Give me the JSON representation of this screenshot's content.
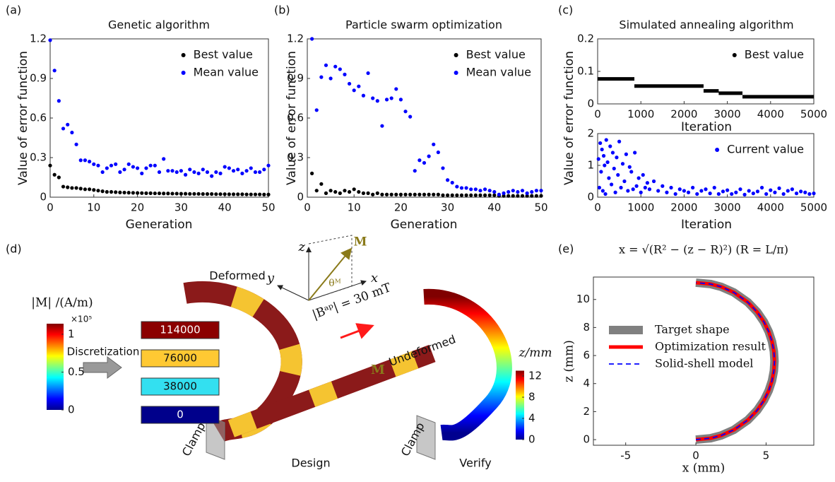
{
  "panel_labels": [
    "(a)",
    "(b)",
    "(c)",
    "(d)",
    "(e)"
  ],
  "chart_data": [
    {
      "type": "scatter",
      "title": "Genetic algorithm",
      "xlabel": "Generation",
      "ylabel": "Value of error function",
      "x": [
        0,
        1,
        2,
        3,
        4,
        5,
        6,
        7,
        8,
        9,
        10,
        11,
        12,
        13,
        14,
        15,
        16,
        17,
        18,
        19,
        20,
        21,
        22,
        23,
        24,
        25,
        26,
        27,
        28,
        29,
        30,
        31,
        32,
        33,
        34,
        35,
        36,
        37,
        38,
        39,
        40,
        41,
        42,
        43,
        44,
        45,
        46,
        47,
        48,
        49,
        50
      ],
      "series": [
        {
          "name": "Best value",
          "color": "#000000",
          "values": [
            0.24,
            0.17,
            0.15,
            0.08,
            0.075,
            0.07,
            0.07,
            0.065,
            0.06,
            0.06,
            0.055,
            0.05,
            0.045,
            0.04,
            0.04,
            0.038,
            0.036,
            0.035,
            0.034,
            0.033,
            0.032,
            0.031,
            0.03,
            0.03,
            0.029,
            0.029,
            0.028,
            0.028,
            0.027,
            0.027,
            0.026,
            0.026,
            0.025,
            0.025,
            0.025,
            0.024,
            0.024,
            0.024,
            0.023,
            0.023,
            0.023,
            0.022,
            0.022,
            0.022,
            0.022,
            0.021,
            0.021,
            0.021,
            0.021,
            0.02,
            0.02
          ]
        },
        {
          "name": "Mean value",
          "color": "#0000ff",
          "values": [
            1.19,
            0.96,
            0.73,
            0.52,
            0.55,
            0.49,
            0.4,
            0.28,
            0.28,
            0.27,
            0.25,
            0.24,
            0.19,
            0.22,
            0.24,
            0.25,
            0.19,
            0.21,
            0.25,
            0.23,
            0.22,
            0.18,
            0.22,
            0.24,
            0.24,
            0.19,
            0.29,
            0.2,
            0.2,
            0.19,
            0.2,
            0.17,
            0.21,
            0.19,
            0.18,
            0.21,
            0.19,
            0.16,
            0.19,
            0.18,
            0.23,
            0.22,
            0.2,
            0.21,
            0.18,
            0.2,
            0.22,
            0.19,
            0.19,
            0.21,
            0.24
          ]
        }
      ],
      "xlim": [
        0,
        50
      ],
      "ylim": [
        0,
        1.2
      ],
      "xticks": [
        0,
        10,
        20,
        30,
        40,
        50
      ],
      "yticks": [
        0,
        0.3,
        0.6,
        0.9,
        1.2
      ],
      "legend": "upper right"
    },
    {
      "type": "scatter",
      "title": "Particle swarm optimization",
      "xlabel": "Generation",
      "ylabel": "Value of error function",
      "x": [
        1,
        2,
        3,
        4,
        5,
        6,
        7,
        8,
        9,
        10,
        11,
        12,
        13,
        14,
        15,
        16,
        17,
        18,
        19,
        20,
        21,
        22,
        23,
        24,
        25,
        26,
        27,
        28,
        29,
        30,
        31,
        32,
        33,
        34,
        35,
        36,
        37,
        38,
        39,
        40,
        41,
        42,
        43,
        44,
        45,
        46,
        47,
        48,
        49,
        50
      ],
      "series": [
        {
          "name": "Best value",
          "color": "#000000",
          "values": [
            0.18,
            0.05,
            0.1,
            0.03,
            0.05,
            0.04,
            0.03,
            0.05,
            0.04,
            0.06,
            0.04,
            0.03,
            0.03,
            0.02,
            0.03,
            0.02,
            0.02,
            0.02,
            0.02,
            0.02,
            0.02,
            0.02,
            0.02,
            0.02,
            0.02,
            0.02,
            0.02,
            0.02,
            0.015,
            0.015,
            0.015,
            0.015,
            0.015,
            0.015,
            0.015,
            0.015,
            0.015,
            0.015,
            0.015,
            0.015,
            0.01,
            0.01,
            0.01,
            0.01,
            0.01,
            0.01,
            0.01,
            0.01,
            0.01,
            0.01
          ]
        },
        {
          "name": "Mean value",
          "color": "#0000ff",
          "values": [
            1.2,
            0.66,
            0.91,
            1.0,
            0.9,
            0.99,
            0.97,
            0.93,
            0.86,
            0.81,
            0.84,
            0.77,
            0.94,
            0.75,
            0.73,
            0.54,
            0.74,
            0.75,
            0.82,
            0.74,
            0.65,
            0.61,
            0.2,
            0.28,
            0.26,
            0.31,
            0.4,
            0.34,
            0.22,
            0.13,
            0.11,
            0.08,
            0.07,
            0.07,
            0.06,
            0.06,
            0.05,
            0.06,
            0.05,
            0.04,
            0.02,
            0.03,
            0.04,
            0.05,
            0.04,
            0.05,
            0.03,
            0.04,
            0.05,
            0.05
          ]
        }
      ],
      "xlim": [
        0,
        50
      ],
      "ylim": [
        0,
        1.2
      ],
      "xticks": [
        0,
        10,
        20,
        30,
        40,
        50
      ],
      "yticks": [
        0,
        0.3,
        0.6,
        0.9,
        1.2
      ],
      "legend": "upper right"
    },
    {
      "type": "line",
      "title": "Simulated annealing algorithm",
      "xlabel": "Iteration",
      "ylabel": "Value of error function",
      "x": [
        0,
        850,
        null,
        850,
        2450,
        null,
        2450,
        2800,
        null,
        2800,
        3350,
        null,
        3350,
        5000
      ],
      "series": [
        {
          "name": "Best value",
          "color": "#000000",
          "marker": "o",
          "values": [
            0.077,
            0.077,
            null,
            0.055,
            0.055,
            null,
            0.04,
            0.04,
            null,
            0.033,
            0.033,
            null,
            0.022,
            0.022
          ]
        }
      ],
      "xlim": [
        0,
        5000
      ],
      "ylim": [
        0,
        0.2
      ],
      "xticks": [
        0,
        1000,
        2000,
        3000,
        4000,
        5000
      ],
      "yticks": [
        0,
        0.1,
        0.2
      ],
      "legend": "upper right"
    },
    {
      "type": "scatter",
      "xlabel": "Iteration",
      "x": [
        20,
        40,
        60,
        80,
        100,
        120,
        140,
        160,
        180,
        200,
        230,
        260,
        290,
        320,
        350,
        380,
        410,
        440,
        470,
        500,
        540,
        580,
        620,
        660,
        700,
        740,
        780,
        820,
        860,
        900,
        950,
        1000,
        1050,
        1100,
        1150,
        1200,
        1300,
        1400,
        1500,
        1600,
        1700,
        1800,
        1900,
        2000,
        2100,
        2200,
        2300,
        2400,
        2500,
        2600,
        2700,
        2800,
        2900,
        3000,
        3100,
        3200,
        3300,
        3400,
        3500,
        3600,
        3700,
        3800,
        3900,
        4000,
        4100,
        4200,
        4300,
        4400,
        4500,
        4600,
        4700,
        4800,
        4900,
        5000
      ],
      "series": [
        {
          "name": "Current value",
          "color": "#0000ff",
          "values": [
            1.2,
            0.3,
            1.7,
            0.8,
            1.5,
            0.2,
            1.3,
            1.0,
            0.1,
            1.8,
            1.1,
            0.6,
            1.6,
            0.4,
            1.4,
            0.9,
            0.15,
            1.25,
            0.7,
            1.75,
            0.3,
            1.05,
            0.5,
            1.35,
            0.2,
            0.95,
            0.8,
            0.25,
            1.4,
            0.35,
            0.6,
            0.15,
            0.7,
            0.3,
            0.45,
            0.25,
            0.5,
            0.2,
            0.35,
            0.15,
            0.3,
            0.1,
            0.25,
            0.2,
            0.15,
            0.3,
            0.1,
            0.2,
            0.25,
            0.12,
            0.3,
            0.1,
            0.18,
            0.22,
            0.1,
            0.15,
            0.25,
            0.08,
            0.2,
            0.12,
            0.18,
            0.3,
            0.1,
            0.22,
            0.15,
            0.28,
            0.1,
            0.2,
            0.25,
            0.12,
            0.18,
            0.15,
            0.1,
            0.12
          ]
        }
      ],
      "xlim": [
        0,
        5000
      ],
      "ylim": [
        0,
        2
      ],
      "xticks": [
        0,
        1000,
        2000,
        3000,
        4000,
        5000
      ],
      "yticks": [
        0,
        1,
        2
      ],
      "legend": "upper right"
    },
    {
      "type": "line",
      "title": "x = √(R² − (z − R)²)  (R = L/π)",
      "xlabel": "x (mm)",
      "ylabel": "z (mm)",
      "z": [
        0,
        0.1,
        0.3,
        0.7,
        1.4,
        2.1,
        2.8,
        3.5,
        4.2,
        4.9,
        5.6,
        6.3,
        7,
        7.7,
        8.4,
        9.1,
        9.8,
        10.5,
        10.9,
        11.1,
        11.2
      ],
      "series": [
        {
          "name": "Target shape",
          "color": "#808080",
          "values": [
            0,
            1.054,
            1.808,
            2.711,
            3.704,
            4.372,
            4.85,
            5.191,
            5.422,
            5.556,
            5.6,
            5.556,
            5.422,
            5.191,
            4.85,
            4.372,
            3.704,
            2.711,
            1.808,
            1.054,
            0
          ]
        },
        {
          "name": "Optimization result",
          "color": "#ff0000",
          "values": [
            0,
            1.054,
            1.808,
            2.711,
            3.704,
            4.372,
            4.85,
            5.191,
            5.422,
            5.556,
            5.6,
            5.556,
            5.422,
            5.191,
            4.85,
            4.372,
            3.704,
            2.711,
            1.808,
            1.054,
            0
          ]
        },
        {
          "name": "Solid-shell model",
          "color": "#0000ff",
          "linestyle": "dashed",
          "values": [
            0,
            1.054,
            1.808,
            2.711,
            3.704,
            4.372,
            4.85,
            5.191,
            5.422,
            5.556,
            5.6,
            5.556,
            5.422,
            5.191,
            4.85,
            4.372,
            3.704,
            2.711,
            1.808,
            1.054,
            0
          ]
        }
      ],
      "xlim": [
        -7.3,
        8.4
      ],
      "ylim": [
        -0.4,
        11.6
      ],
      "xticks": [
        -5,
        0,
        5
      ],
      "yticks": [
        0,
        2,
        4,
        6,
        8,
        10
      ],
      "legend": "center left"
    }
  ],
  "diagram": {
    "m_colorbar": {
      "label": "|M| /(A/m)",
      "multiplier": "×10⁵",
      "lim": [
        0,
        1.14
      ],
      "ticks": [
        0,
        0.5,
        1
      ]
    },
    "discretization": "Discretization",
    "levels": [
      {
        "value": 114000,
        "color": "#8b0000"
      },
      {
        "value": 76000,
        "color": "#ffc933"
      },
      {
        "value": 38000,
        "color": "#33e0f0"
      },
      {
        "value": 0,
        "color": "#00008b"
      }
    ],
    "labels": {
      "deformed": "Deformed",
      "undeformed": "Undeformed",
      "design": "Design",
      "verify": "Verify",
      "clamp_left": "Clamp",
      "clamp_right": "Clamp",
      "m_beam": "M",
      "field": "|Bᵃᵖ| = 30 mT",
      "axis_z": "z",
      "axis_y": "y",
      "axis_x": "x",
      "axis_m": "M",
      "angle": "θᴹ"
    },
    "z_colorbar": {
      "label": "z/mm",
      "lim": [
        0,
        13
      ],
      "ticks": [
        0,
        4,
        8,
        12
      ]
    }
  }
}
